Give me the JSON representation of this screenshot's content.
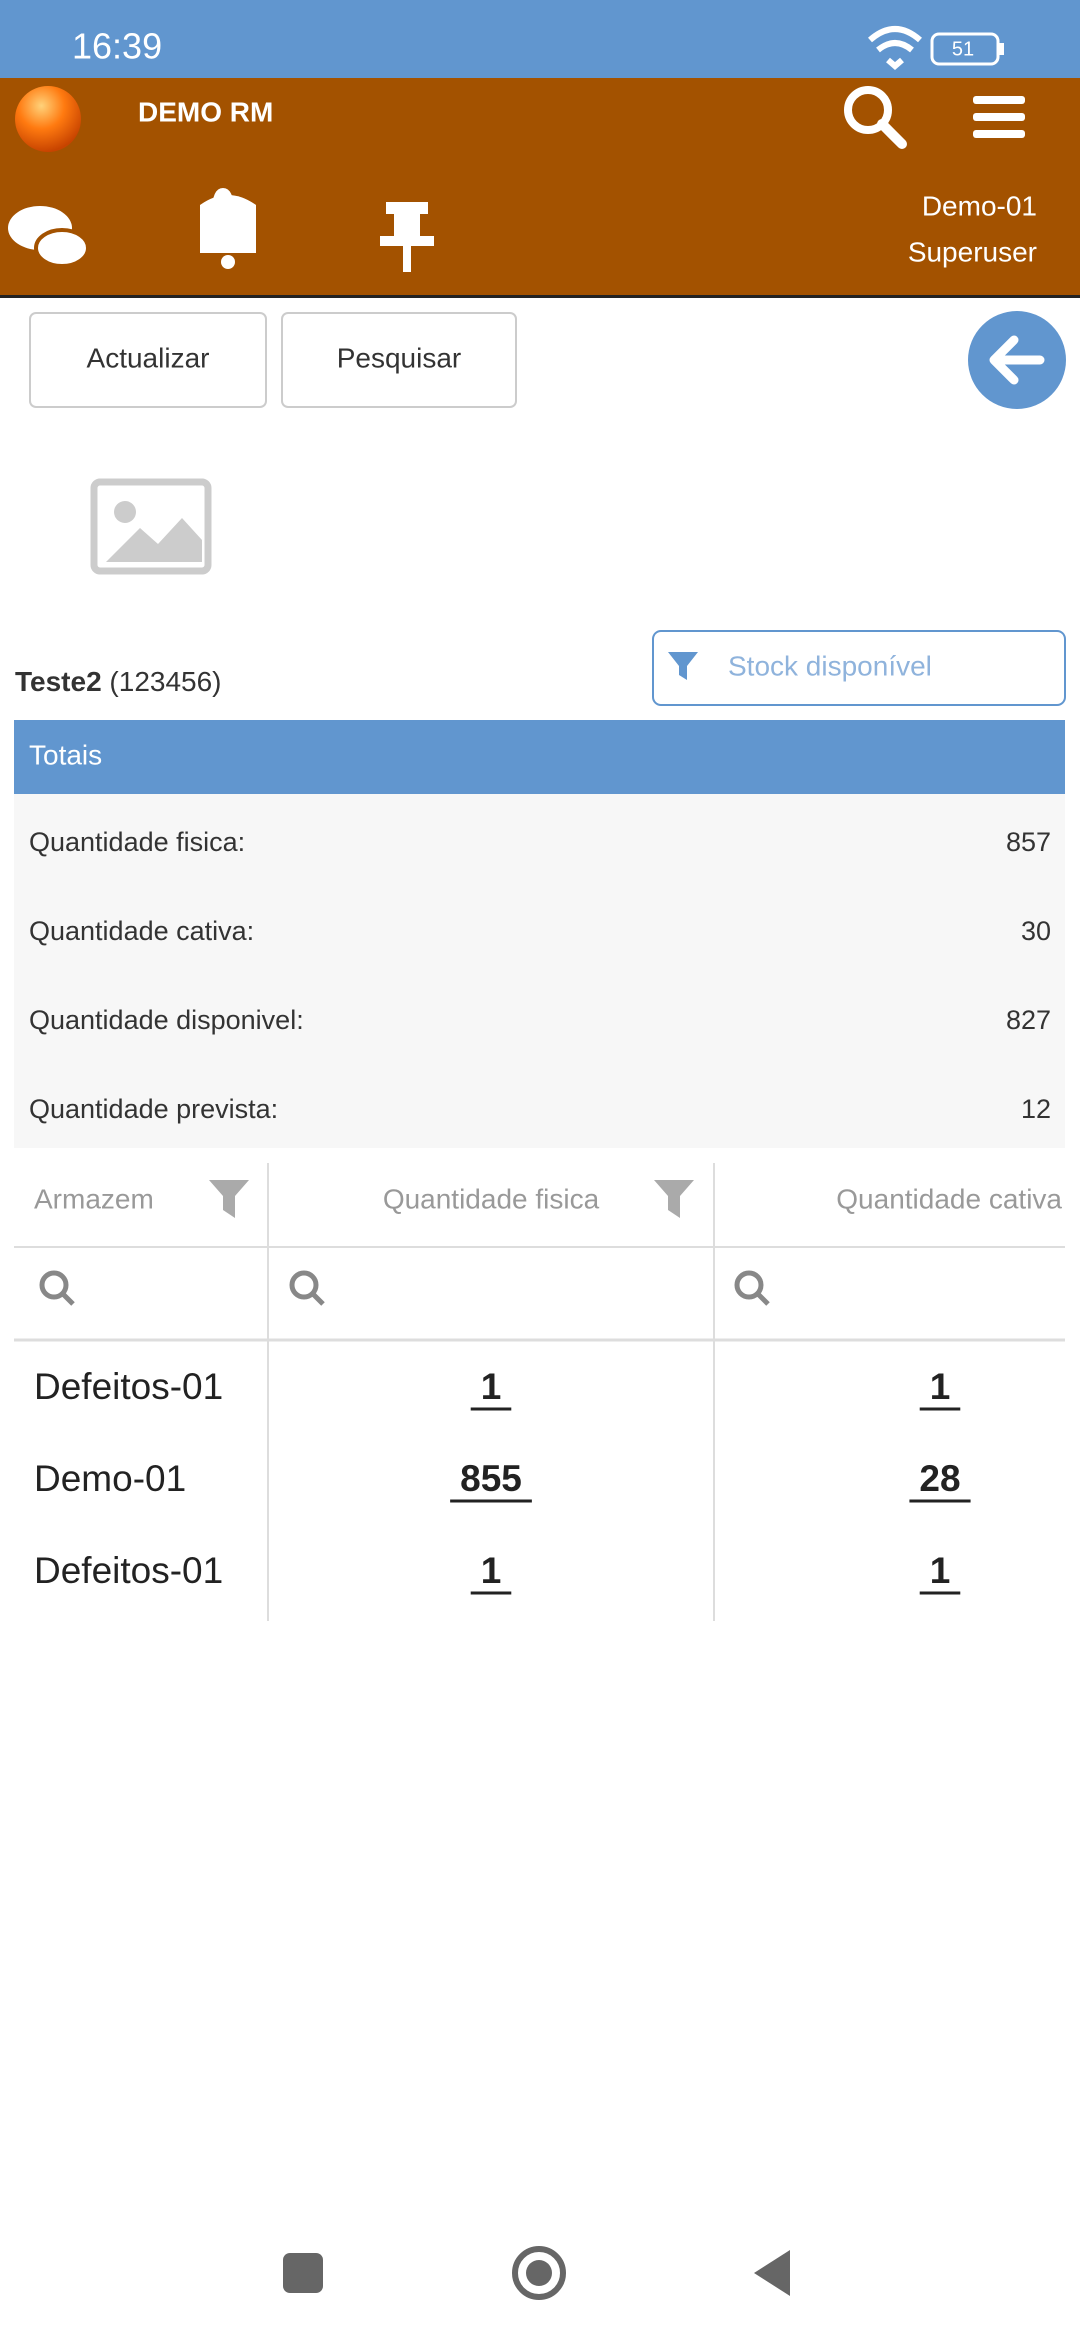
{
  "status_bar": {
    "time": "16:39",
    "battery": "51"
  },
  "header": {
    "app_name": "DEMO RM",
    "user": "Demo-01",
    "role": "Superuser"
  },
  "toolbar": {
    "buttons": [
      "Actualizar",
      "Pesquisar"
    ]
  },
  "product": {
    "name": "Teste2",
    "code": "(123456)",
    "filter": "Stock disponível"
  },
  "totals": {
    "title": "Totais",
    "rows": [
      {
        "label": "Quantidade fisica:",
        "value": 857
      },
      {
        "label": "Quantidade cativa:",
        "value": 30
      },
      {
        "label": "Quantidade disponivel:",
        "value": 827
      },
      {
        "label": "Quantidade prevista:",
        "value": 12
      }
    ]
  },
  "table": {
    "columns": [
      "Armazem",
      "Quantidade fisica",
      "Quantidade cativa"
    ],
    "rows": [
      [
        "Defeitos-01",
        1,
        1
      ],
      [
        "Demo-01",
        855,
        28
      ],
      [
        "Defeitos-01",
        1,
        1
      ]
    ]
  }
}
